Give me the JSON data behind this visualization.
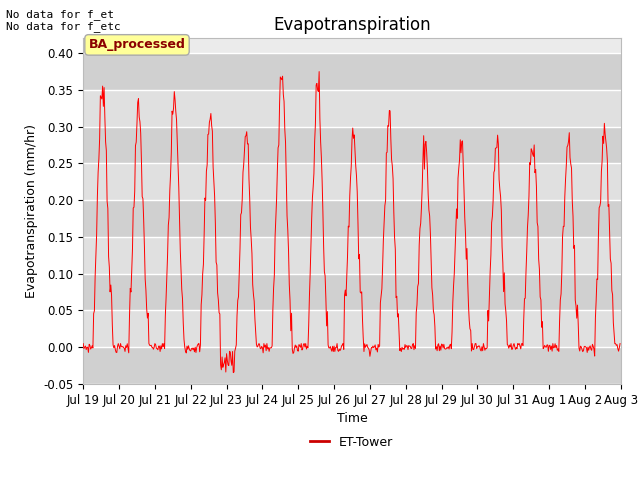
{
  "title": "Evapotranspiration",
  "xlabel": "Time",
  "ylabel": "Evapotranspiration (mm/hr)",
  "ylim": [
    -0.05,
    0.42
  ],
  "yticks": [
    -0.05,
    0.0,
    0.05,
    0.1,
    0.15,
    0.2,
    0.25,
    0.3,
    0.35,
    0.4
  ],
  "no_data_text1": "No data for f_et",
  "no_data_text2": "No data for f_etc",
  "legend_label": "ET-Tower",
  "legend_box_label": "BA_processed",
  "line_color": "#ff0000",
  "bg_color": "#ffffff",
  "plot_bg_color": "#ebebeb",
  "band_light": "#e0e0e0",
  "band_dark": "#d0d0d0",
  "title_fontsize": 12,
  "label_fontsize": 9,
  "tick_fontsize": 8.5,
  "num_days": 15
}
